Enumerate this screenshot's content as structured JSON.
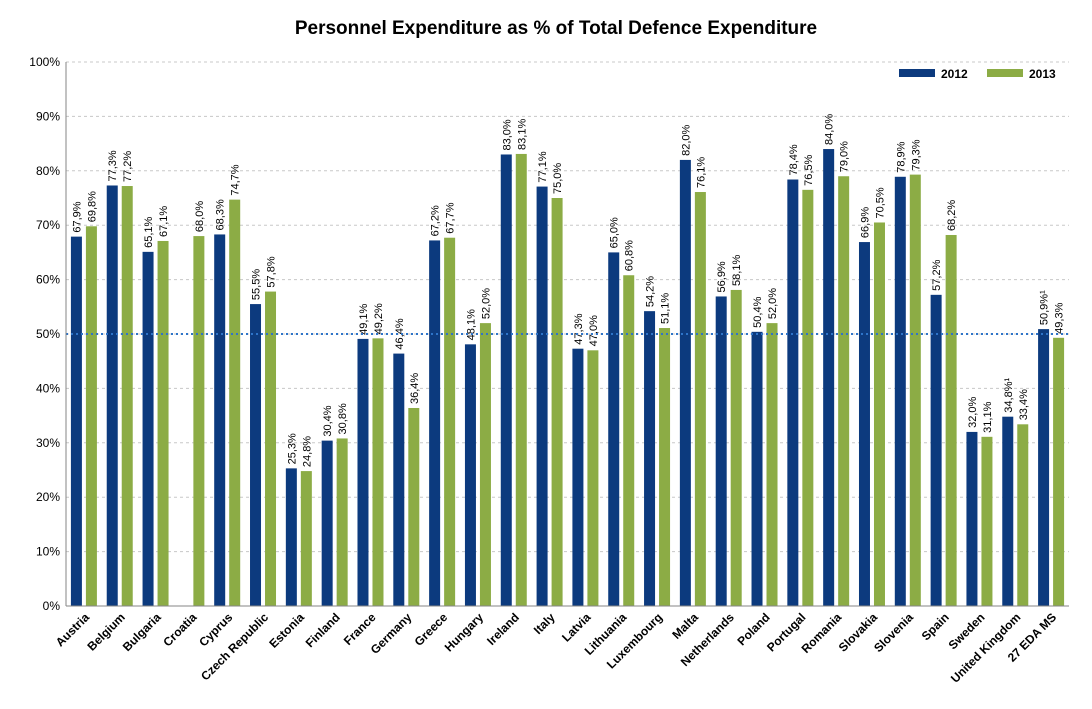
{
  "chart_data": {
    "type": "bar",
    "title": "Personnel Expenditure as % of Total Defence Expenditure",
    "xlabel": "",
    "ylabel": "",
    "ylim": [
      0,
      100
    ],
    "yticks": [
      "0%",
      "10%",
      "20%",
      "30%",
      "40%",
      "50%",
      "60%",
      "70%",
      "80%",
      "90%",
      "100%"
    ],
    "reference_line": 50,
    "grid": true,
    "legend_position": "top-right",
    "categories": [
      "Austria",
      "Belgium",
      "Bulgaria",
      "Croatia",
      "Cyprus",
      "Czech Republic",
      "Estonia",
      "Finland",
      "France",
      "Germany",
      "Greece",
      "Hungary",
      "Ireland",
      "Italy",
      "Latvia",
      "Lithuania",
      "Luxembourg",
      "Malta",
      "Netherlands",
      "Poland",
      "Portugal",
      "Romania",
      "Slovakia",
      "Slovenia",
      "Spain",
      "Sweden",
      "United Kingdom",
      "27 EDA MS"
    ],
    "series": [
      {
        "name": "2012",
        "color": "#0c3a7e",
        "values": [
          67.9,
          77.3,
          65.1,
          null,
          68.3,
          55.5,
          25.3,
          30.4,
          49.1,
          46.4,
          67.2,
          48.1,
          83.0,
          77.1,
          47.3,
          65.0,
          54.2,
          82.0,
          56.9,
          50.4,
          78.4,
          84.0,
          66.9,
          78.9,
          57.2,
          32.0,
          34.8,
          50.9
        ],
        "labels": [
          "67,9%",
          "77,3%",
          "65,1%",
          "",
          "68,3%",
          "55,5%",
          "25,3%",
          "30,4%",
          "49,1%",
          "46,4%",
          "67,2%",
          "48,1%",
          "83,0%",
          "77,1%",
          "47,3%",
          "65,0%",
          "54,2%",
          "82,0%",
          "56,9%",
          "50,4%",
          "78,4%",
          "84,0%",
          "66,9%",
          "78,9%",
          "57,2%",
          "32,0%",
          "34,8%¹",
          "50,9%¹"
        ]
      },
      {
        "name": "2013",
        "color": "#8cac45",
        "values": [
          69.8,
          77.2,
          67.1,
          68.0,
          74.7,
          57.8,
          24.8,
          30.8,
          49.2,
          36.4,
          67.7,
          52.0,
          83.1,
          75.0,
          47.0,
          60.8,
          51.1,
          76.1,
          58.1,
          52.0,
          76.5,
          79.0,
          70.5,
          79.3,
          68.2,
          31.1,
          33.4,
          49.3
        ],
        "labels": [
          "69,8%",
          "77,2%",
          "67,1%",
          "68,0%",
          "74,7%",
          "57,8%",
          "24,8%",
          "30,8%",
          "49,2%",
          "36,4%",
          "67,7%",
          "52,0%",
          "83,1%",
          "75,0%",
          "47,0%",
          "60,8%",
          "51,1%",
          "76,1%",
          "58,1%",
          "52,0%",
          "76,5%",
          "79,0%",
          "70,5%",
          "79,3%",
          "68,2%",
          "31,1%",
          "33,4%",
          "49,3%"
        ]
      }
    ]
  }
}
